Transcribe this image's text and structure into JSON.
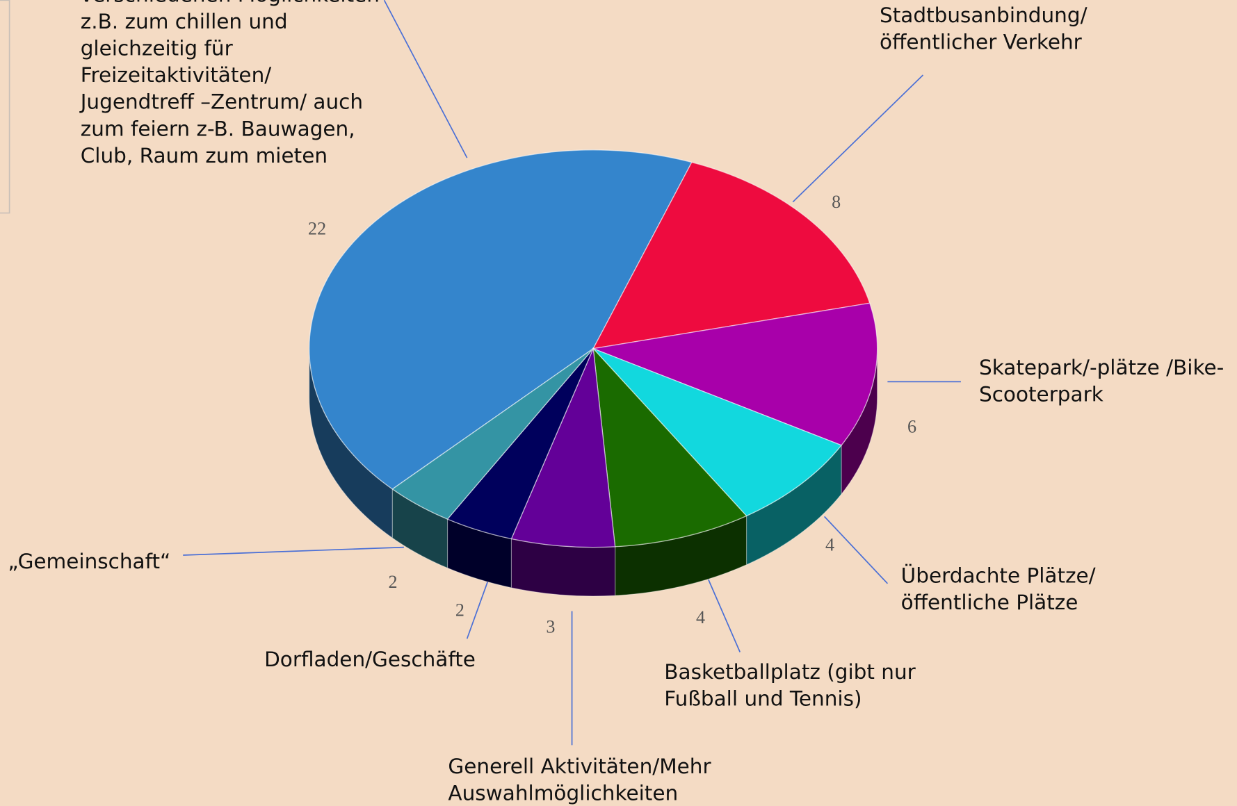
{
  "chart_data": {
    "type": "pie3d",
    "categories": [
      "verschiedenen Möglichkeiten\nz.B. zum chillen und\ngleichzeitig für\nFreizeitaktivitäten/\nJugendtreff –Zentrum/ auch\nzum feiern z-B. Bauwagen,\nClub, Raum zum mieten",
      "Stadtbusanbindung/\nöffentlicher Verkehr",
      "Skatepark/-plätze /Bike-\nScooterpark",
      "Überdachte Plätze/\nöffentliche Plätze",
      "Basketballplatz  (gibt nur\nFußball und Tennis)",
      "Generell Aktivitäten/Mehr\nAuswahlmöglichkeiten",
      "Dorfladen/Geschäfte",
      "„Gemeinschaft“"
    ],
    "values": [
      22,
      8,
      6,
      4,
      4,
      3,
      2,
      2
    ],
    "colors": [
      "#3485cc",
      "#ee0b3f",
      "#a800aa",
      "#12d8de",
      "#1a6b00",
      "#630098",
      "#00005c",
      "#3494a4"
    ]
  }
}
